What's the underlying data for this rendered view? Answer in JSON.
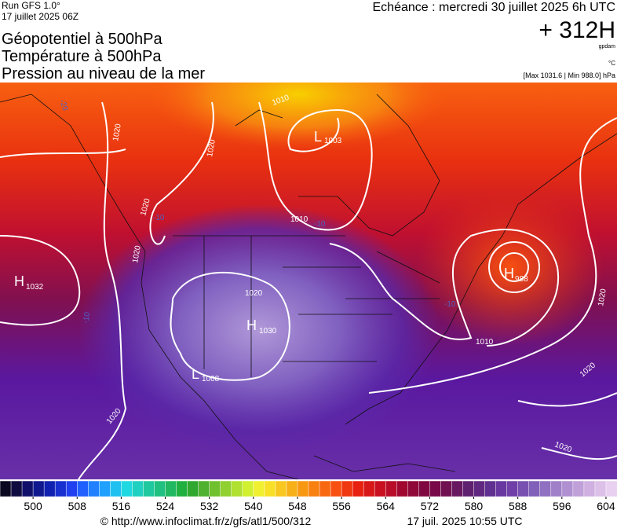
{
  "header": {
    "run": "Run GFS 1.0°",
    "run_date": "17 juillet 2025 06Z",
    "titles": [
      "Géopotentiel à 500hPa",
      "Température à 500hPa",
      "Pression au niveau de la mer"
    ],
    "valid": "Echéance : mercredi 30 juillet 2025 6h UTC",
    "lead": "+ 312H",
    "unit_geo": "gpdam",
    "unit_temp": "°C",
    "minmax": "[Max 1031.6 | Min 988.0] hPa"
  },
  "map": {
    "centers": [
      {
        "letter": "H",
        "value": "1032"
      },
      {
        "letter": "L",
        "value": "1003"
      },
      {
        "letter": "H",
        "value": "1030"
      },
      {
        "letter": "L",
        "value": "1008"
      },
      {
        "letter": "H",
        "value": "988"
      },
      {
        "letter": "",
        "value": "1020"
      }
    ],
    "isobar_labels": [
      "1020",
      "1020",
      "1020",
      "1020",
      "1010",
      "1010",
      "1010",
      "1020",
      "1020",
      "1020",
      "1020"
    ],
    "temp_labels": [
      "-20",
      "-10",
      "-10",
      "-10",
      "-10"
    ]
  },
  "colorbar": {
    "lim": [
      494,
      606
    ],
    "colors": [
      "#0a0820",
      "#100c40",
      "#10106a",
      "#101890",
      "#1020b0",
      "#1830d0",
      "#2040f0",
      "#2060ff",
      "#2080ff",
      "#20a0ff",
      "#20c0f0",
      "#20d8e0",
      "#20d0c0",
      "#20c8a0",
      "#20c080",
      "#20b860",
      "#20b040",
      "#30a830",
      "#50b030",
      "#70c030",
      "#90d030",
      "#b0e030",
      "#d0f030",
      "#f0f030",
      "#f8e028",
      "#f8c820",
      "#f8b018",
      "#f89810",
      "#f88010",
      "#f86810",
      "#f85010",
      "#f03810",
      "#e82010",
      "#d81818",
      "#c81020",
      "#b80c28",
      "#a00830",
      "#900838",
      "#800840",
      "#780848",
      "#701050",
      "#681860",
      "#602070",
      "#602880",
      "#603090",
      "#6838a0",
      "#7040a8",
      "#7850b0",
      "#8060b8",
      "#9070c0",
      "#a080c8",
      "#b090d0",
      "#c0a0d8",
      "#d0b0e0",
      "#dcc0e8",
      "#e8d0f0"
    ],
    "ticks": [
      500,
      508,
      516,
      524,
      532,
      540,
      548,
      556,
      564,
      572,
      580,
      588,
      596,
      604
    ]
  },
  "footer": {
    "url": "© http://www.infoclimat.fr/z/gfs/atl1/500/312",
    "timestamp": "17 juil. 2025 10:55 UTC"
  }
}
